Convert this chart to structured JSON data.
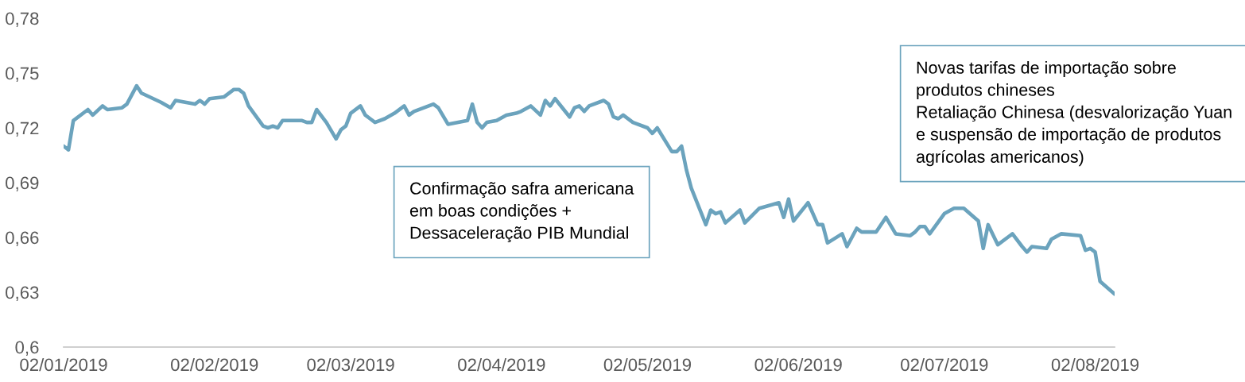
{
  "chart_data": {
    "type": "line",
    "color": "#6ba3bd",
    "line_style": "solid",
    "x": [
      "2019-01-02",
      "2019-01-03",
      "2019-01-04",
      "2019-01-07",
      "2019-01-08",
      "2019-01-10",
      "2019-01-11",
      "2019-01-14",
      "2019-01-15",
      "2019-01-17",
      "2019-01-18",
      "2019-01-22",
      "2019-01-24",
      "2019-01-25",
      "2019-01-29",
      "2019-01-30",
      "2019-01-31",
      "2019-02-01",
      "2019-02-04",
      "2019-02-06",
      "2019-02-07",
      "2019-02-08",
      "2019-02-09",
      "2019-02-12",
      "2019-02-13",
      "2019-02-14",
      "2019-02-15",
      "2019-02-16",
      "2019-02-20",
      "2019-02-21",
      "2019-02-22",
      "2019-02-23",
      "2019-02-25",
      "2019-02-27",
      "2019-02-28",
      "2019-03-01",
      "2019-03-02",
      "2019-03-04",
      "2019-03-05",
      "2019-03-06",
      "2019-03-07",
      "2019-03-09",
      "2019-03-11",
      "2019-03-13",
      "2019-03-14",
      "2019-03-15",
      "2019-03-19",
      "2019-03-20",
      "2019-03-22",
      "2019-03-26",
      "2019-03-27",
      "2019-03-28",
      "2019-03-29",
      "2019-03-30",
      "2019-04-01",
      "2019-04-03",
      "2019-04-05",
      "2019-04-06",
      "2019-04-08",
      "2019-04-10",
      "2019-04-11",
      "2019-04-12",
      "2019-04-13",
      "2019-04-16",
      "2019-04-17",
      "2019-04-18",
      "2019-04-19",
      "2019-04-20",
      "2019-04-23",
      "2019-04-24",
      "2019-04-25",
      "2019-04-26",
      "2019-04-27",
      "2019-04-29",
      "2019-05-02",
      "2019-05-03",
      "2019-05-04",
      "2019-05-07",
      "2019-05-08",
      "2019-05-09",
      "2019-05-10",
      "2019-05-11",
      "2019-05-14",
      "2019-05-15",
      "2019-05-16",
      "2019-05-17",
      "2019-05-18",
      "2019-05-21",
      "2019-05-22",
      "2019-05-25",
      "2019-05-29",
      "2019-05-30",
      "2019-05-31",
      "2019-06-01",
      "2019-06-04",
      "2019-06-06",
      "2019-06-07",
      "2019-06-08",
      "2019-06-11",
      "2019-06-12",
      "2019-06-14",
      "2019-06-15",
      "2019-06-18",
      "2019-06-20",
      "2019-06-22",
      "2019-06-25",
      "2019-06-26",
      "2019-06-27",
      "2019-06-28",
      "2019-06-29",
      "2019-07-02",
      "2019-07-04",
      "2019-07-06",
      "2019-07-09",
      "2019-07-10",
      "2019-07-11",
      "2019-07-13",
      "2019-07-16",
      "2019-07-18",
      "2019-07-19",
      "2019-07-20",
      "2019-07-23",
      "2019-07-24",
      "2019-07-26",
      "2019-07-30",
      "2019-07-31",
      "2019-08-01",
      "2019-08-02",
      "2019-08-03",
      "2019-08-06"
    ],
    "values": [
      0.71,
      0.708,
      0.724,
      0.73,
      0.727,
      0.732,
      0.73,
      0.731,
      0.733,
      0.743,
      0.739,
      0.734,
      0.731,
      0.735,
      0.733,
      0.735,
      0.733,
      0.736,
      0.737,
      0.741,
      0.741,
      0.739,
      0.732,
      0.721,
      0.72,
      0.721,
      0.72,
      0.724,
      0.724,
      0.723,
      0.723,
      0.73,
      0.723,
      0.714,
      0.719,
      0.721,
      0.728,
      0.732,
      0.727,
      0.725,
      0.723,
      0.725,
      0.728,
      0.732,
      0.727,
      0.729,
      0.733,
      0.731,
      0.722,
      0.724,
      0.733,
      0.723,
      0.72,
      0.723,
      0.724,
      0.727,
      0.728,
      0.729,
      0.732,
      0.727,
      0.735,
      0.732,
      0.736,
      0.726,
      0.731,
      0.732,
      0.729,
      0.732,
      0.735,
      0.733,
      0.726,
      0.725,
      0.727,
      0.723,
      0.72,
      0.717,
      0.72,
      0.707,
      0.707,
      0.71,
      0.697,
      0.687,
      0.667,
      0.675,
      0.673,
      0.674,
      0.668,
      0.675,
      0.668,
      0.676,
      0.679,
      0.671,
      0.681,
      0.669,
      0.679,
      0.667,
      0.667,
      0.657,
      0.662,
      0.655,
      0.665,
      0.663,
      0.663,
      0.671,
      0.662,
      0.661,
      0.663,
      0.666,
      0.666,
      0.662,
      0.673,
      0.676,
      0.676,
      0.669,
      0.654,
      0.667,
      0.656,
      0.662,
      0.655,
      0.652,
      0.655,
      0.654,
      0.659,
      0.662,
      0.661,
      0.653,
      0.654,
      0.652,
      0.636,
      0.629
    ],
    "xlim": [
      "2019-01-02",
      "2019-08-06"
    ],
    "xticks": [
      {
        "value": "2019-01-02",
        "label": "02/01/2019"
      },
      {
        "value": "2019-02-02",
        "label": "02/02/2019"
      },
      {
        "value": "2019-03-02",
        "label": "02/03/2019"
      },
      {
        "value": "2019-04-02",
        "label": "02/04/2019"
      },
      {
        "value": "2019-05-02",
        "label": "02/05/2019"
      },
      {
        "value": "2019-06-02",
        "label": "02/06/2019"
      },
      {
        "value": "2019-07-02",
        "label": "02/07/2019"
      },
      {
        "value": "2019-08-02",
        "label": "02/08/2019"
      }
    ],
    "ylim": [
      0.6,
      0.78
    ],
    "yticks": [
      {
        "value": 0.6,
        "label": "0,6"
      },
      {
        "value": 0.63,
        "label": "0,63"
      },
      {
        "value": 0.66,
        "label": "0,66"
      },
      {
        "value": 0.69,
        "label": "0,69"
      },
      {
        "value": 0.72,
        "label": "0,72"
      },
      {
        "value": 0.75,
        "label": "0,75"
      },
      {
        "value": 0.78,
        "label": "0,78"
      }
    ],
    "annotations": [
      "Confirmação safra americana\nem boas condições +\nDessaceleração PIB Mundial",
      "Novas tarifas de importação sobre\nprodutos chineses\nRetaliação Chinesa (desvalorização Yuan\ne suspensão de importação de produtos\nagrícolas americanos)"
    ]
  }
}
